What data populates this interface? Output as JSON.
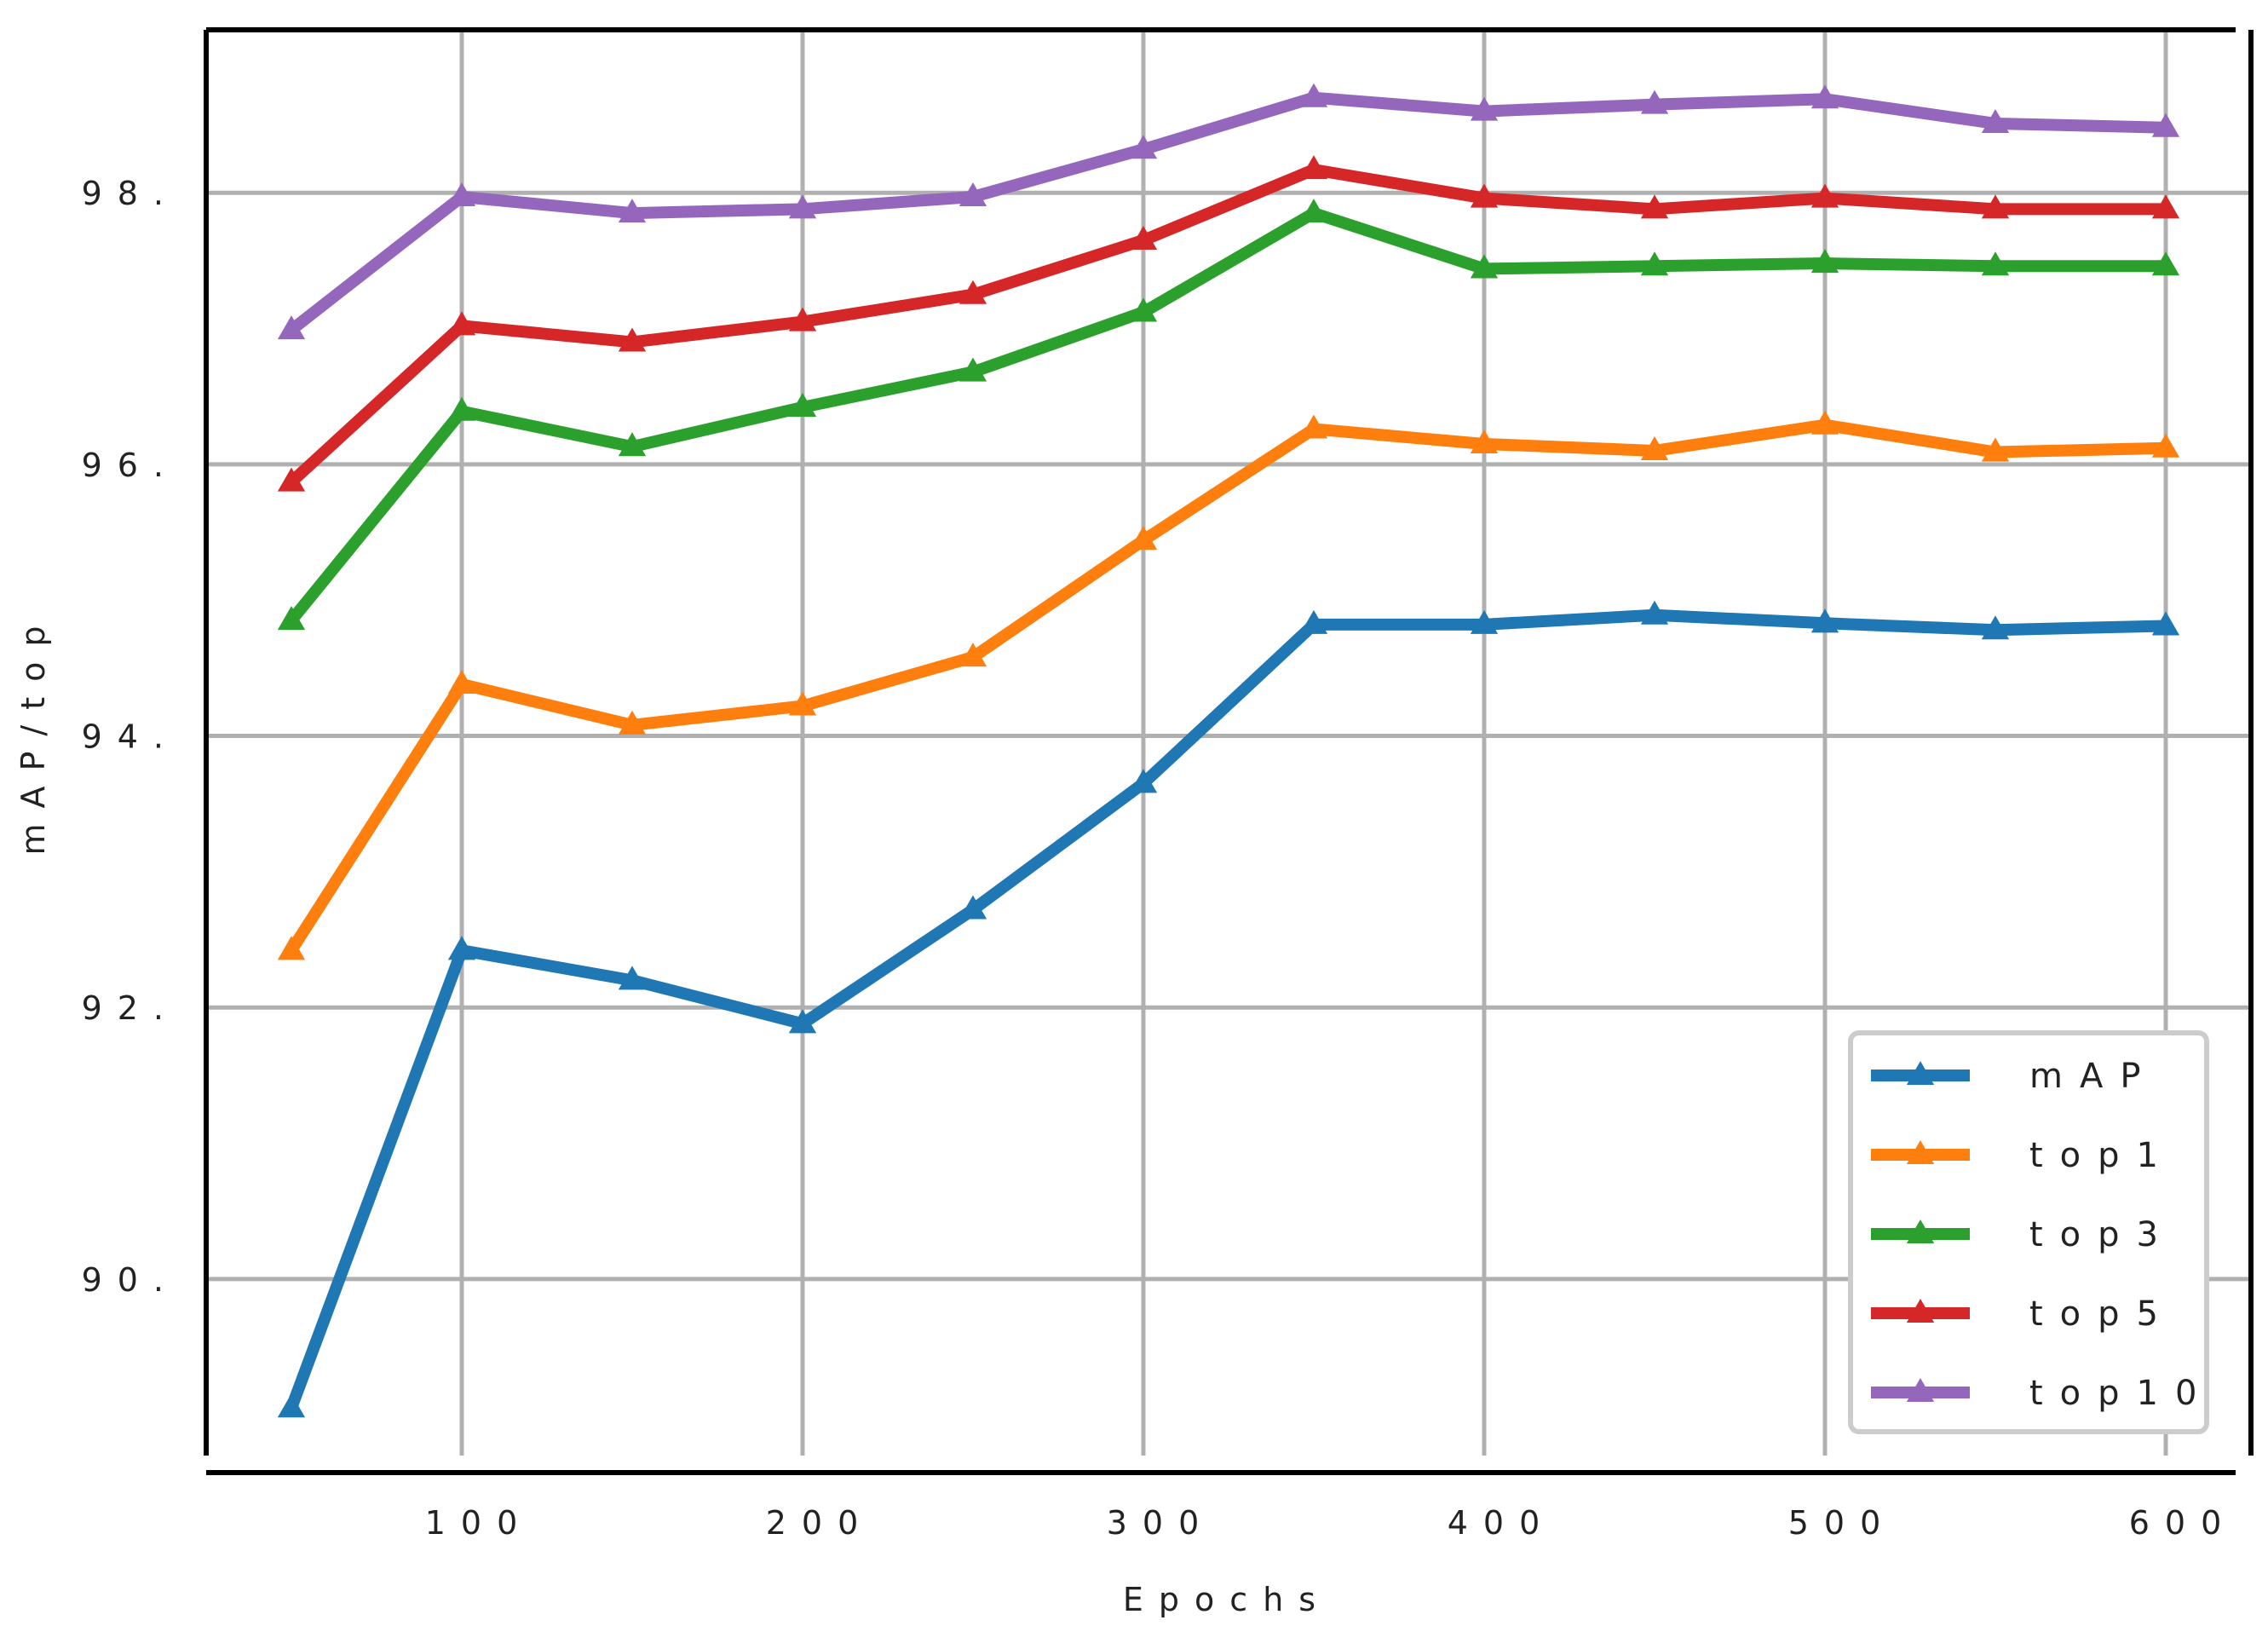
{
  "chart_data": {
    "type": "line",
    "title": "",
    "xlabel": "Epochs",
    "ylabel": "mAP/top",
    "xlim": [
      25,
      625
    ],
    "ylim": [
      88.7,
      99.2
    ],
    "x": [
      50,
      100,
      150,
      200,
      250,
      300,
      350,
      400,
      450,
      500,
      550,
      600
    ],
    "x_ticks": [
      100,
      200,
      300,
      400,
      500,
      600
    ],
    "x_tick_labels": [
      "100",
      "200",
      "300",
      "400",
      "500",
      "600"
    ],
    "y_ticks": [
      90,
      92,
      94,
      96,
      98
    ],
    "y_tick_labels": [
      "90.",
      "92.",
      "94.",
      "96.",
      "98."
    ],
    "grid": true,
    "marker": "triangle-up",
    "legend_position": "lower-right",
    "series": [
      {
        "name": "mAP",
        "color": "#1f77b4",
        "values": [
          89.05,
          92.42,
          92.2,
          91.88,
          92.72,
          93.65,
          94.82,
          94.82,
          94.89,
          94.83,
          94.78,
          94.81
        ]
      },
      {
        "name": "top1",
        "color": "#ff7f0e",
        "values": [
          92.42,
          94.38,
          94.08,
          94.22,
          94.58,
          95.44,
          96.26,
          96.15,
          96.1,
          96.29,
          96.09,
          96.12
        ]
      },
      {
        "name": "top3",
        "color": "#2ca02c",
        "values": [
          94.85,
          96.39,
          96.13,
          96.42,
          96.68,
          97.12,
          97.85,
          97.44,
          97.46,
          97.48,
          97.46,
          97.46
        ]
      },
      {
        "name": "top5",
        "color": "#d62728",
        "values": [
          95.87,
          97.02,
          96.9,
          97.05,
          97.25,
          97.65,
          98.17,
          97.96,
          97.88,
          97.96,
          97.88,
          97.88
        ]
      },
      {
        "name": "top10",
        "color": "#9467bd",
        "values": [
          96.99,
          97.97,
          97.85,
          97.88,
          97.97,
          98.32,
          98.7,
          98.6,
          98.65,
          98.69,
          98.51,
          98.48
        ]
      }
    ]
  }
}
